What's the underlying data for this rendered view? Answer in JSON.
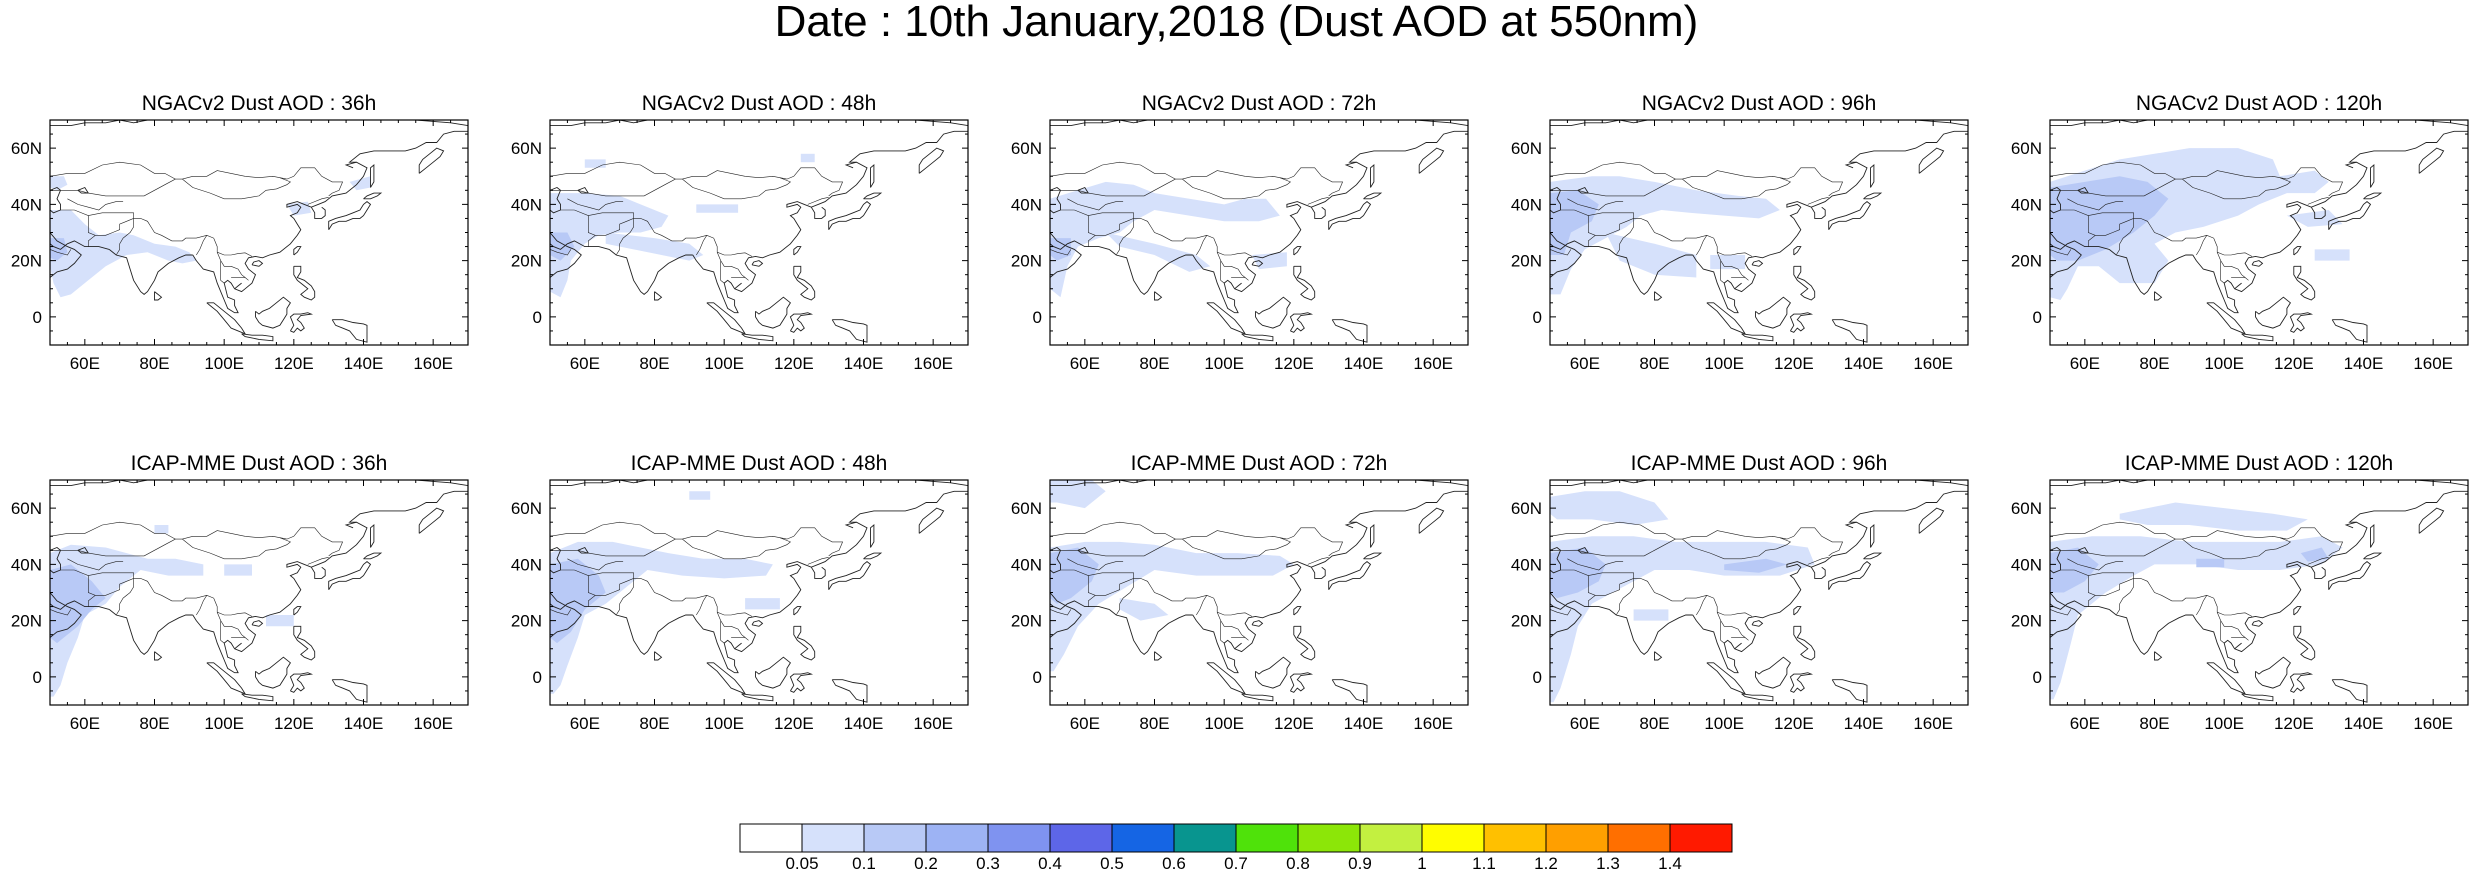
{
  "title": "Date : 10th January,2018 (Dust AOD at 550nm)",
  "axes": {
    "lon_ticks": [
      "60E",
      "80E",
      "100E",
      "120E",
      "140E",
      "160E"
    ],
    "lon_values": [
      60,
      80,
      100,
      120,
      140,
      160
    ],
    "lat_ticks": [
      "60N",
      "40N",
      "20N",
      "0"
    ],
    "lat_values": [
      60,
      40,
      20,
      0
    ],
    "lon_range": [
      50,
      170
    ],
    "lat_range": [
      -10,
      70
    ]
  },
  "panels": [
    {
      "title": "NGACv2 Dust AOD : 36h",
      "model": "NGACv2",
      "lead": "36h"
    },
    {
      "title": "NGACv2 Dust AOD : 48h",
      "model": "NGACv2",
      "lead": "48h"
    },
    {
      "title": "NGACv2 Dust AOD : 72h",
      "model": "NGACv2",
      "lead": "72h"
    },
    {
      "title": "NGACv2 Dust AOD : 96h",
      "model": "NGACv2",
      "lead": "96h"
    },
    {
      "title": "NGACv2 Dust AOD : 120h",
      "model": "NGACv2",
      "lead": "120h"
    },
    {
      "title": "ICAP-MME Dust AOD : 36h",
      "model": "ICAP-MME",
      "lead": "36h"
    },
    {
      "title": "ICAP-MME Dust AOD : 48h",
      "model": "ICAP-MME",
      "lead": "48h"
    },
    {
      "title": "ICAP-MME Dust AOD : 72h",
      "model": "ICAP-MME",
      "lead": "72h"
    },
    {
      "title": "ICAP-MME Dust AOD : 96h",
      "model": "ICAP-MME",
      "lead": "96h"
    },
    {
      "title": "ICAP-MME Dust AOD : 120h",
      "model": "ICAP-MME",
      "lead": "120h"
    }
  ],
  "colorbar": {
    "labels": [
      "0.05",
      "0.1",
      "0.2",
      "0.3",
      "0.4",
      "0.5",
      "0.6",
      "0.7",
      "0.8",
      "0.9",
      "1",
      "1.1",
      "1.2",
      "1.3",
      "1.4"
    ],
    "colors": [
      "#ffffff",
      "#d6e1fb",
      "#b8c9f6",
      "#9db3f4",
      "#7f93f0",
      "#5d66e8",
      "#1565e4",
      "#08958f",
      "#4fe20a",
      "#8ce608",
      "#c3f040",
      "#fffd00",
      "#ffc000",
      "#ff9f00",
      "#ff6f00",
      "#ff1a00"
    ]
  },
  "map_colors": {
    "land": "#ffffff",
    "dust_light": "#d6e1fb",
    "dust_medium": "#b8c9f6",
    "coastline": "#222222"
  }
}
